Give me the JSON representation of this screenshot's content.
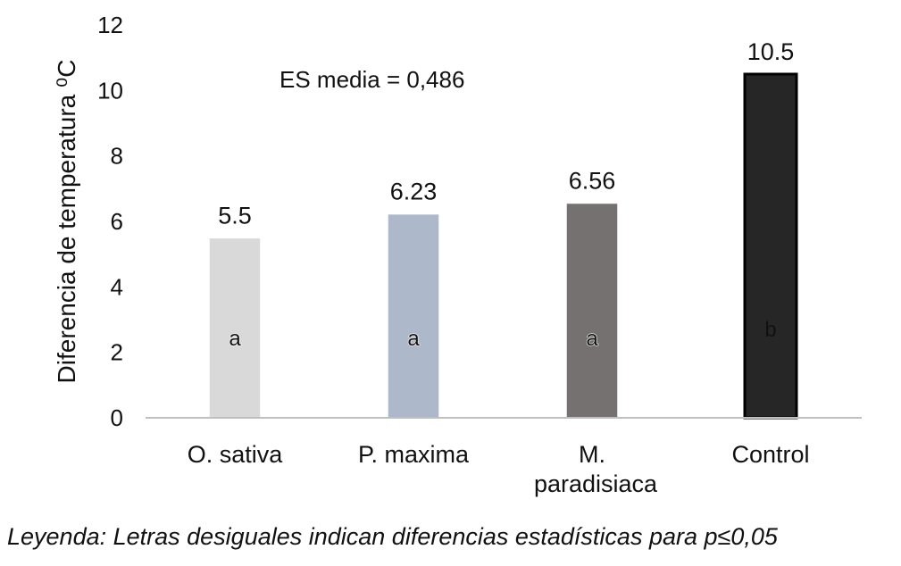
{
  "chart_data": {
    "type": "bar",
    "ylabel": "Diferencia de temperatura ⁰C",
    "xlabel": "",
    "ylim": [
      0,
      12
    ],
    "yticks": [
      0,
      2,
      4,
      6,
      8,
      10,
      12
    ],
    "grid": false,
    "categories": [
      "O. sativa",
      "P. maxima",
      "M. paradisiaca",
      "Control"
    ],
    "values": [
      5.5,
      6.23,
      6.56,
      10.5
    ],
    "value_labels": [
      "5.5",
      "6.23",
      "6.56",
      "10.5"
    ],
    "significance_letters": [
      "a",
      "a",
      "a",
      "b"
    ],
    "colors": [
      "#d9d9d9",
      "#adb9ca",
      "#767171",
      "#262626"
    ],
    "annotation": "ES media = 0,486"
  },
  "footnote": "Leyenda: Letras desiguales indican diferencias estadísticas para p≤0,05"
}
